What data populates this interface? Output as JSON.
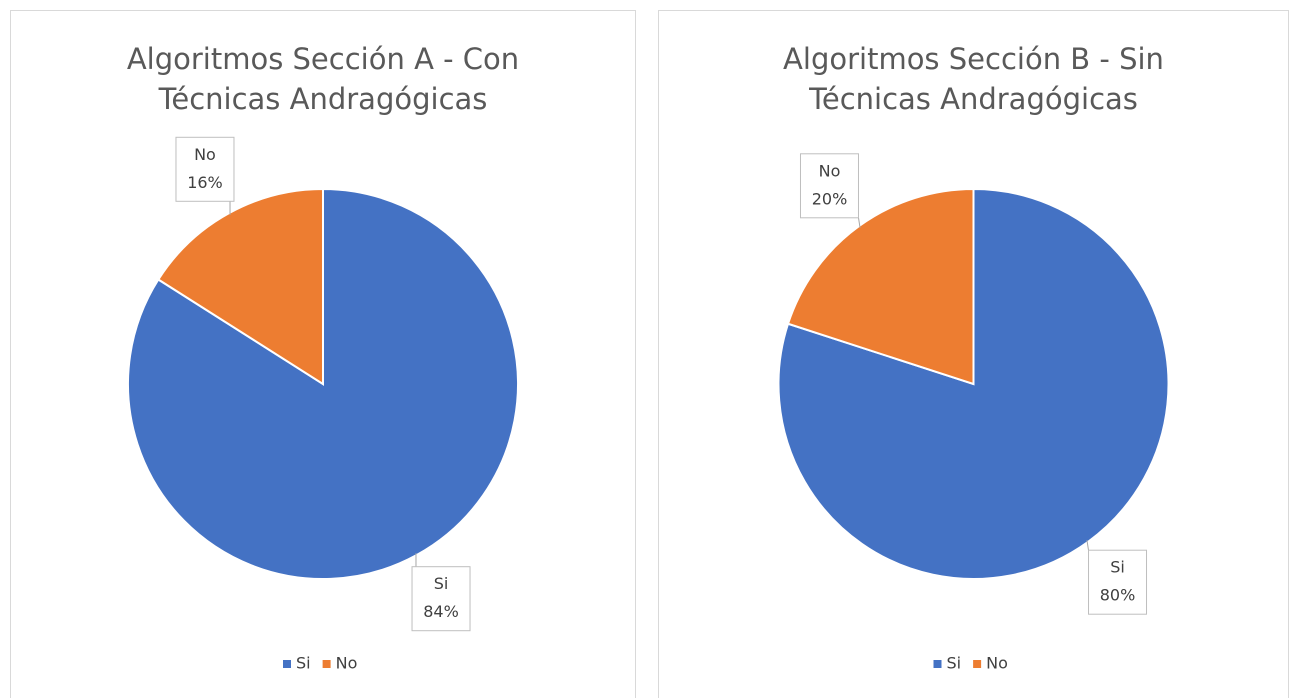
{
  "chart_data": [
    {
      "type": "pie",
      "title": "Algoritmos Sección A - Con Técnicas Andragógicas",
      "categories": [
        "Si",
        "No"
      ],
      "values": [
        84,
        16
      ],
      "value_labels": [
        "84%",
        "16%"
      ],
      "colors": [
        "#4472c4",
        "#ed7d31"
      ],
      "legend": "bottom"
    },
    {
      "type": "pie",
      "title": "Algoritmos Sección B - Sin Técnicas Andragógicas",
      "categories": [
        "Si",
        "No"
      ],
      "values": [
        80,
        20
      ],
      "value_labels": [
        "80%",
        "20%"
      ],
      "colors": [
        "#4472c4",
        "#ed7d31"
      ],
      "legend": "bottom"
    }
  ]
}
